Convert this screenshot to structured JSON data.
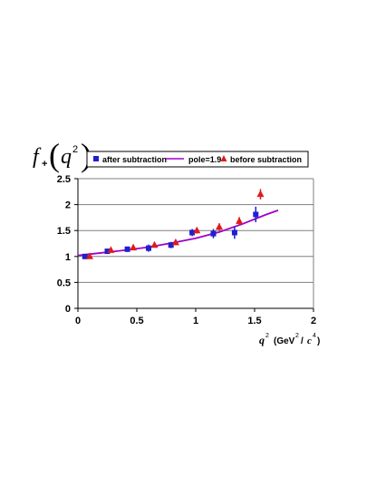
{
  "chart_data": {
    "type": "scatter",
    "ylabel": {
      "f": "f",
      "sub": "+",
      "q": "q",
      "sup": "2"
    },
    "xlabel": {
      "q": "q",
      "q_sup": "2",
      "unit_open": "(GeV",
      "unit_sup1": "2",
      "slash": "/",
      "c": "c",
      "unit_sup2": "4",
      "unit_close": ")"
    },
    "xlim": [
      0,
      2
    ],
    "ylim": [
      0,
      2.5
    ],
    "x_ticks": [
      0,
      0.5,
      1,
      1.5,
      2
    ],
    "x_tick_labels": [
      "0",
      "0.5",
      "1",
      "1.5",
      "2"
    ],
    "y_ticks": [
      0,
      0.5,
      1,
      1.5,
      2,
      2.5
    ],
    "y_tick_labels": [
      "0",
      "0.5",
      "1",
      "1.5",
      "2",
      "2.5"
    ],
    "grid": "horizontal",
    "legend_position": "top",
    "series": [
      {
        "name": "after subtraction",
        "marker": "square",
        "color": "#1f1fd0",
        "points": [
          {
            "x": 0.06,
            "y": 1.0,
            "err": 0.03
          },
          {
            "x": 0.25,
            "y": 1.1,
            "err": 0.04
          },
          {
            "x": 0.42,
            "y": 1.14,
            "err": 0.05
          },
          {
            "x": 0.6,
            "y": 1.16,
            "err": 0.07
          },
          {
            "x": 0.79,
            "y": 1.22,
            "err": 0.06
          },
          {
            "x": 0.97,
            "y": 1.46,
            "err": 0.07
          },
          {
            "x": 1.15,
            "y": 1.44,
            "err": 0.09
          },
          {
            "x": 1.33,
            "y": 1.46,
            "err": 0.12
          },
          {
            "x": 1.51,
            "y": 1.81,
            "err": 0.15
          }
        ]
      },
      {
        "name": "pole=1.9",
        "marker": "line",
        "color": "#a000c8",
        "points": [
          {
            "x": 0,
            "y": 1.02
          },
          {
            "x": 0.2,
            "y": 1.07
          },
          {
            "x": 0.4,
            "y": 1.12
          },
          {
            "x": 0.6,
            "y": 1.18
          },
          {
            "x": 0.8,
            "y": 1.26
          },
          {
            "x": 1.0,
            "y": 1.35
          },
          {
            "x": 1.2,
            "y": 1.47
          },
          {
            "x": 1.4,
            "y": 1.63
          },
          {
            "x": 1.6,
            "y": 1.81
          },
          {
            "x": 1.7,
            "y": 1.89
          }
        ]
      },
      {
        "name": "before subtraction",
        "marker": "triangle",
        "color": "#e01a1a",
        "points": [
          {
            "x": 0.1,
            "y": 1.0,
            "err": 0.03
          },
          {
            "x": 0.28,
            "y": 1.12,
            "err": 0.04
          },
          {
            "x": 0.47,
            "y": 1.17,
            "err": 0.05
          },
          {
            "x": 0.65,
            "y": 1.22,
            "err": 0.05
          },
          {
            "x": 0.83,
            "y": 1.27,
            "err": 0.05
          },
          {
            "x": 1.01,
            "y": 1.5,
            "err": 0.06
          },
          {
            "x": 1.2,
            "y": 1.57,
            "err": 0.07
          },
          {
            "x": 1.37,
            "y": 1.68,
            "err": 0.08
          },
          {
            "x": 1.55,
            "y": 2.2,
            "err": 0.1
          }
        ]
      }
    ]
  }
}
